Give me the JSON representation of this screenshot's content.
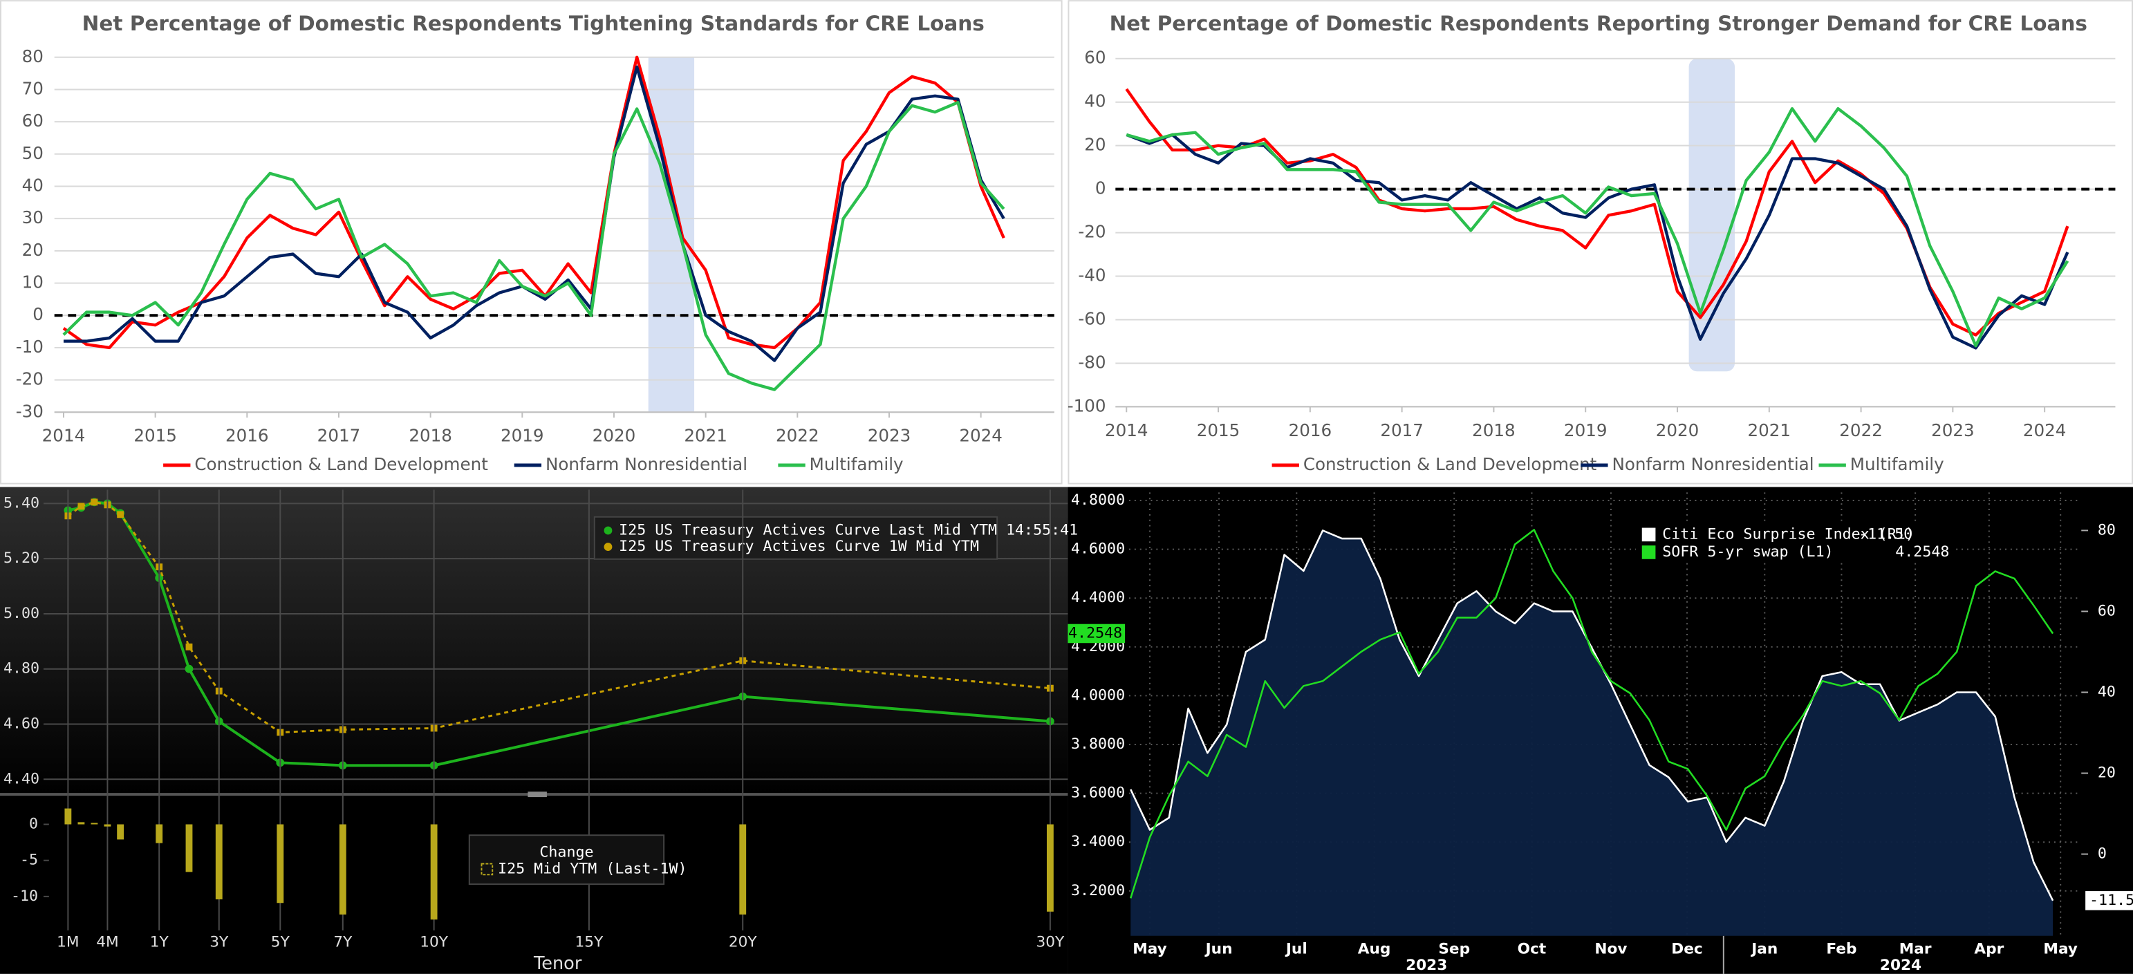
{
  "chart_data": [
    {
      "type": "line",
      "title": "Net Percentage of Domestic Respondents Tightening Standards for CRE Loans",
      "x": [
        2014,
        2014.25,
        2014.5,
        2014.75,
        2015,
        2015.25,
        2015.5,
        2015.75,
        2016,
        2016.25,
        2016.5,
        2016.75,
        2017,
        2017.25,
        2017.5,
        2017.75,
        2018,
        2018.25,
        2018.5,
        2018.75,
        2019,
        2019.25,
        2019.5,
        2019.75,
        2020,
        2020.25,
        2020.5,
        2020.75,
        2021,
        2021.25,
        2021.5,
        2021.75,
        2022,
        2022.25,
        2022.5,
        2022.75,
        2023,
        2023.25,
        2023.5,
        2023.75,
        2024,
        2024.25
      ],
      "xlim": [
        2013.9,
        2024.8
      ],
      "xticks": [
        2014,
        2015,
        2016,
        2017,
        2018,
        2019,
        2020,
        2021,
        2022,
        2023,
        2024
      ],
      "ylim": [
        -30,
        80
      ],
      "yticks": [
        -30,
        -20,
        -10,
        0,
        10,
        20,
        30,
        40,
        50,
        60,
        70,
        80
      ],
      "grid": true,
      "shade": [
        2020.375,
        2020.875
      ],
      "series": [
        {
          "name": "Construction & Land Development",
          "color": "#ff0000",
          "values": [
            -4,
            -9,
            -10,
            -2,
            -3,
            1,
            4,
            12,
            24,
            31,
            27,
            25,
            32,
            17,
            3,
            12,
            5,
            2,
            6,
            13,
            14,
            6,
            16,
            7,
            50,
            80,
            55,
            24,
            14,
            -7,
            -9,
            -10,
            -4,
            4,
            48,
            57,
            69,
            74,
            72,
            66,
            40,
            24
          ]
        },
        {
          "name": "Nonfarm Nonresidential",
          "color": "#002060",
          "values": [
            -8,
            -8,
            -7,
            -1,
            -8,
            -8,
            4,
            6,
            12,
            18,
            19,
            13,
            12,
            19,
            4,
            1,
            -7,
            -3,
            3,
            7,
            9,
            5,
            11,
            2,
            49,
            77,
            52,
            22,
            0,
            -5,
            -8,
            -14,
            -4,
            1,
            41,
            53,
            57,
            67,
            68,
            67,
            42,
            30
          ]
        },
        {
          "name": "Multifamily",
          "color": "#2bbf4e",
          "values": [
            -6,
            1,
            1,
            0,
            4,
            -3,
            7,
            22,
            36,
            44,
            42,
            33,
            36,
            18,
            22,
            16,
            6,
            7,
            4,
            17,
            9,
            6,
            10,
            0,
            50,
            64,
            47,
            22,
            -6,
            -18,
            -21,
            -23,
            -16,
            -9,
            30,
            40,
            57,
            65,
            63,
            66,
            41,
            33
          ]
        }
      ]
    },
    {
      "type": "line",
      "title": "Net Percentage of Domestic Respondents Reporting Stronger Demand for CRE Loans",
      "x": [
        2014,
        2014.25,
        2014.5,
        2014.75,
        2015,
        2015.25,
        2015.5,
        2015.75,
        2016,
        2016.25,
        2016.5,
        2016.75,
        2017,
        2017.25,
        2017.5,
        2017.75,
        2018,
        2018.25,
        2018.5,
        2018.75,
        2019,
        2019.25,
        2019.5,
        2019.75,
        2020,
        2020.25,
        2020.5,
        2020.75,
        2021,
        2021.25,
        2021.5,
        2021.75,
        2022,
        2022.25,
        2022.5,
        2022.75,
        2023,
        2023.25,
        2023.5,
        2023.75,
        2024,
        2024.25
      ],
      "xlim": [
        2013.88,
        2024.77
      ],
      "xticks": [
        2014,
        2015,
        2016,
        2017,
        2018,
        2019,
        2020,
        2021,
        2022,
        2023,
        2024
      ],
      "ylim": [
        -100,
        60
      ],
      "yticks": [
        -100,
        -80,
        -60,
        -40,
        -20,
        0,
        20,
        40,
        60
      ],
      "grid": true,
      "shade": [
        2020.125,
        2020.625
      ],
      "series": [
        {
          "name": "Construction & Land Development",
          "color": "#ff0000",
          "values": [
            46,
            31,
            18,
            18,
            20,
            19,
            23,
            12,
            13,
            16,
            10,
            -5,
            -9,
            -10,
            -9,
            -9,
            -8,
            -14,
            -17,
            -19,
            -27,
            -12,
            -10,
            -7,
            -47,
            -59,
            -44,
            -24,
            8,
            22,
            3,
            13,
            7,
            -2,
            -18,
            -45,
            -62,
            -67,
            -57,
            -52,
            -47,
            -17
          ]
        },
        {
          "name": "Nonfarm Nonresidential",
          "color": "#002060",
          "values": [
            25,
            21,
            25,
            16,
            12,
            21,
            20,
            10,
            14,
            12,
            4,
            3,
            -5,
            -3,
            -5,
            3,
            -3,
            -9,
            -4,
            -11,
            -13,
            -4,
            0,
            2,
            -40,
            -69,
            -48,
            -32,
            -12,
            14,
            14,
            12,
            6,
            0,
            -17,
            -46,
            -68,
            -73,
            -58,
            -49,
            -53,
            -29
          ]
        },
        {
          "name": "Multifamily",
          "color": "#2bbf4e",
          "values": [
            25,
            22,
            25,
            26,
            16,
            19,
            21,
            9,
            9,
            9,
            8,
            -6,
            -7,
            -7,
            -7,
            -19,
            -6,
            -10,
            -6,
            -3,
            -11,
            1,
            -3,
            -2,
            -25,
            -57,
            -28,
            4,
            17,
            37,
            22,
            37,
            29,
            19,
            6,
            -26,
            -47,
            -72,
            -50,
            -55,
            -50,
            -33
          ]
        }
      ]
    },
    {
      "type": "line",
      "x": [
        0.0833,
        0.1667,
        0.25,
        0.3333,
        0.5,
        1,
        2,
        3,
        5,
        7,
        10,
        20,
        30
      ],
      "ylim": [
        4.355,
        5.45
      ],
      "yticks": [
        {
          "value": 4.4,
          "label": "4.40"
        },
        {
          "value": 4.6,
          "label": "4.60"
        },
        {
          "value": 4.8,
          "label": "4.80"
        },
        {
          "value": 5.0,
          "label": "5.00"
        },
        {
          "value": 5.2,
          "label": "5.20"
        },
        {
          "value": 5.4,
          "label": "5.40"
        }
      ],
      "grid": true,
      "series": [
        {
          "name": "I25 US Treasury Actives Curve Last Mid YTM 14:55:41",
          "color": "#1db31d",
          "values": [
            5.375,
            5.385,
            5.405,
            5.4,
            5.365,
            5.13,
            4.8,
            4.61,
            4.46,
            4.45,
            4.45,
            4.7,
            4.61
          ]
        },
        {
          "name": "I25 US Treasury Actives Curve 1W Mid YTM",
          "color": "#c8a000",
          "values": [
            5.355,
            5.39,
            5.405,
            5.395,
            5.36,
            5.17,
            4.88,
            4.72,
            4.57,
            4.58,
            4.585,
            4.83,
            4.73
          ]
        }
      ]
    },
    {
      "type": "bar",
      "title": "Change",
      "xlabel": "Tenor",
      "x": [
        0.0833,
        0.1667,
        0.25,
        0.3333,
        0.5,
        1,
        2,
        3,
        5,
        7,
        10,
        20,
        30
      ],
      "xticks": [
        {
          "value": 0.0833,
          "label": "1M"
        },
        {
          "value": 0.3333,
          "label": "4M"
        },
        {
          "value": 1,
          "label": "1Y"
        },
        {
          "value": 3,
          "label": "3Y"
        },
        {
          "value": 5,
          "label": "5Y"
        },
        {
          "value": 7,
          "label": "7Y"
        },
        {
          "value": 10,
          "label": "10Y"
        },
        {
          "value": 15,
          "label": "15Y"
        },
        {
          "value": 20,
          "label": "20Y"
        },
        {
          "value": 30,
          "label": "30Y"
        }
      ],
      "ylim": [
        -14.7,
        3.4
      ],
      "yticks": [
        0,
        -5,
        -10
      ],
      "series": [
        {
          "name": "I25 Mid YTM (Last-1W)",
          "color": "#b8a81c",
          "values": [
            2.2,
            0.3,
            0.2,
            -0.3,
            -2.1,
            -2.6,
            -6.6,
            -10.4,
            -10.9,
            -12.5,
            -13.2,
            -12.5,
            -12.1
          ]
        }
      ]
    },
    {
      "type": "line",
      "x": [
        0.25,
        0.5,
        0.75,
        1,
        1.25,
        1.5,
        1.75,
        2,
        2.25,
        2.5,
        2.75,
        3,
        3.25,
        3.5,
        3.75,
        4,
        4.25,
        4.5,
        4.75,
        5,
        5.25,
        5.5,
        5.75,
        6,
        6.25,
        6.5,
        6.75,
        7,
        7.25,
        7.5,
        7.75,
        8,
        8.25,
        8.5,
        8.75,
        9,
        9.25,
        9.5,
        9.75,
        10,
        10.25,
        10.5,
        10.75,
        11,
        11.25,
        11.5,
        11.75,
        12,
        12.25
      ],
      "xlim": [
        0.23,
        12.62
      ],
      "xticks": [
        {
          "value": 0.5,
          "label": "May"
        },
        {
          "value": 1.4,
          "label": "Jun"
        },
        {
          "value": 2.41,
          "label": "Jul"
        },
        {
          "value": 3.42,
          "label": "Aug"
        },
        {
          "value": 4.46,
          "label": "Sep"
        },
        {
          "value": 5.47,
          "label": "Oct"
        },
        {
          "value": 6.5,
          "label": "Nov"
        },
        {
          "value": 7.49,
          "label": "Dec"
        },
        {
          "value": 8.5,
          "label": "Jan"
        },
        {
          "value": 9.5,
          "label": "Feb"
        },
        {
          "value": 10.46,
          "label": "Mar"
        },
        {
          "value": 11.42,
          "label": "Apr"
        },
        {
          "value": 12.35,
          "label": "May"
        }
      ],
      "year_ticks": [
        {
          "value": 4.1,
          "label": "2023"
        },
        {
          "value": 10.27,
          "label": "2024"
        }
      ],
      "ylim": [
        3.016,
        4.833
      ],
      "yticks": [
        {
          "value": 3.2,
          "label": "3.2000"
        },
        {
          "value": 3.4,
          "label": "3.4000"
        },
        {
          "value": 3.6,
          "label": "3.6000"
        },
        {
          "value": 3.8,
          "label": "3.8000"
        },
        {
          "value": 4.0,
          "label": "4.0000"
        },
        {
          "value": 4.2,
          "label": "4.2000"
        },
        {
          "value": 4.4,
          "label": "4.4000"
        },
        {
          "value": 4.6,
          "label": "4.6000"
        },
        {
          "value": 4.8,
          "label": "4.8000"
        }
      ],
      "y2lim": [
        -20.2,
        89.4
      ],
      "y2ticks": [
        0,
        20,
        40,
        60,
        80
      ],
      "grid": true,
      "series": [
        {
          "name": "Citi Eco Surprise Index (R1)",
          "color": "#ffffff",
          "axis": "y2",
          "last_label": "-11.50",
          "values": [
            16,
            6,
            9,
            36,
            25,
            32,
            50,
            53,
            74,
            70,
            80,
            78,
            78,
            68,
            53,
            44,
            53,
            62,
            65,
            60,
            57,
            62,
            60,
            60,
            51,
            42,
            32,
            22,
            19,
            13,
            14,
            3,
            9,
            7,
            18,
            33,
            44,
            45,
            42,
            42,
            33,
            35,
            37,
            40,
            40,
            34,
            14,
            -2,
            -11.5
          ]
        },
        {
          "name": "SOFR 5-yr swap (L1)",
          "color": "#22dd22",
          "last_label": "4.2548",
          "values": [
            3.17,
            3.42,
            3.59,
            3.73,
            3.67,
            3.84,
            3.79,
            4.06,
            3.95,
            4.04,
            4.06,
            4.12,
            4.18,
            4.23,
            4.26,
            4.09,
            4.18,
            4.32,
            4.32,
            4.4,
            4.62,
            4.68,
            4.51,
            4.4,
            4.18,
            4.06,
            4.01,
            3.9,
            3.73,
            3.7,
            3.59,
            3.45,
            3.62,
            3.67,
            3.81,
            3.92,
            4.06,
            4.04,
            4.06,
            4.01,
            3.9,
            4.04,
            4.09,
            4.18,
            4.45,
            4.51,
            4.48,
            4.37,
            4.2548
          ]
        }
      ]
    }
  ]
}
